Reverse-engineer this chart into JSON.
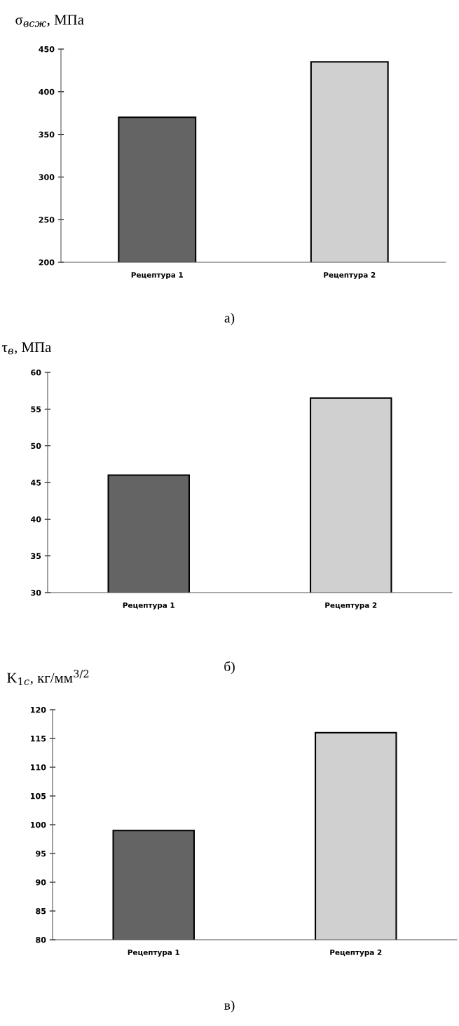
{
  "chart_data": [
    {
      "type": "bar",
      "ylabel": "σ$_{всж}$, МПа",
      "categories": [
        "Рецептура 1",
        "Рецептура 2"
      ],
      "values": [
        370,
        435
      ],
      "colors": [
        "#646464",
        "#d0d0d0"
      ],
      "ylim": [
        200,
        450
      ],
      "yticks": [
        200,
        250,
        300,
        350,
        400,
        450
      ],
      "grid": false,
      "annotations": [
        "а)"
      ]
    },
    {
      "type": "bar",
      "ylabel": "τ$_{в}$, МПа",
      "categories": [
        "Рецептура 1",
        "Рецептура 2"
      ],
      "values": [
        46,
        56.5
      ],
      "colors": [
        "#646464",
        "#d0d0d0"
      ],
      "ylim": [
        30,
        60
      ],
      "yticks": [
        30,
        35,
        40,
        45,
        50,
        55,
        60
      ],
      "grid": false,
      "annotations": [
        "б)"
      ]
    },
    {
      "type": "bar",
      "ylabel": "K$_{1c}$, кг/мм$^{3/2}$",
      "categories": [
        "Рецептура 1",
        "Рецептура 2"
      ],
      "values": [
        99,
        116
      ],
      "colors": [
        "#646464",
        "#d0d0d0"
      ],
      "ylim": [
        80,
        120
      ],
      "yticks": [
        80,
        85,
        90,
        95,
        100,
        105,
        110,
        115,
        120
      ],
      "grid": false,
      "annotations": [
        "в)"
      ]
    }
  ]
}
